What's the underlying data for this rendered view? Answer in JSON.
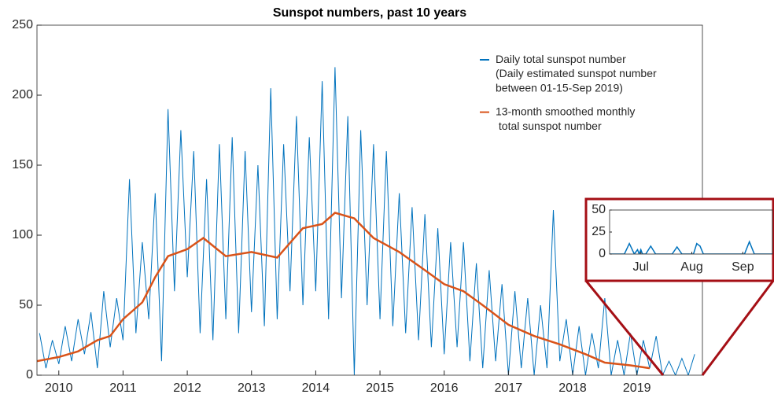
{
  "chart_data": [
    {
      "type": "line",
      "title": "Sunspot numbers, past 10 years",
      "x": [
        2009.7,
        2009.8,
        2009.9,
        2010.0,
        2010.1,
        2010.2,
        2010.3,
        2010.4,
        2010.5,
        2010.6,
        2010.7,
        2010.8,
        2010.9,
        2011.0,
        2011.1,
        2011.2,
        2011.3,
        2011.4,
        2011.5,
        2011.6,
        2011.7,
        2011.8,
        2011.9,
        2012.0,
        2012.1,
        2012.2,
        2012.3,
        2012.4,
        2012.5,
        2012.6,
        2012.7,
        2012.8,
        2012.9,
        2013.0,
        2013.1,
        2013.2,
        2013.3,
        2013.4,
        2013.5,
        2013.6,
        2013.7,
        2013.8,
        2013.9,
        2014.0,
        2014.1,
        2014.2,
        2014.3,
        2014.4,
        2014.5,
        2014.6,
        2014.7,
        2014.8,
        2014.9,
        2015.0,
        2015.1,
        2015.2,
        2015.3,
        2015.4,
        2015.5,
        2015.6,
        2015.7,
        2015.8,
        2015.9,
        2016.0,
        2016.1,
        2016.2,
        2016.3,
        2016.4,
        2016.5,
        2016.6,
        2016.7,
        2016.8,
        2016.9,
        2017.0,
        2017.1,
        2017.2,
        2017.3,
        2017.4,
        2017.5,
        2017.6,
        2017.7,
        2017.8,
        2017.9,
        2018.0,
        2018.1,
        2018.2,
        2018.3,
        2018.4,
        2018.5,
        2018.6,
        2018.7,
        2018.8,
        2018.9,
        2019.0,
        2019.1,
        2019.2,
        2019.3,
        2019.4,
        2019.5,
        2019.6,
        2019.7,
        2019.8,
        2019.9
      ],
      "series": [
        {
          "name": "Daily total sunspot number\n(Daily estimated sunspot number\nbetween 01-15-Sep 2019)",
          "color": "#0072bd",
          "values": [
            30,
            5,
            25,
            8,
            35,
            10,
            40,
            15,
            45,
            5,
            60,
            20,
            55,
            25,
            140,
            30,
            95,
            40,
            130,
            10,
            190,
            60,
            175,
            70,
            160,
            30,
            140,
            25,
            165,
            40,
            170,
            30,
            160,
            45,
            150,
            35,
            205,
            40,
            165,
            60,
            185,
            50,
            170,
            60,
            210,
            40,
            220,
            55,
            185,
            0,
            175,
            50,
            165,
            40,
            160,
            35,
            130,
            30,
            120,
            25,
            115,
            20,
            105,
            15,
            95,
            20,
            95,
            10,
            80,
            5,
            75,
            10,
            65,
            0,
            60,
            5,
            55,
            0,
            50,
            5,
            118,
            10,
            40,
            0,
            35,
            0,
            30,
            5,
            55,
            0,
            25,
            0,
            30,
            0,
            25,
            5,
            28,
            0,
            10,
            0,
            12,
            0,
            15
          ]
        },
        {
          "name": "13-month smoothed monthly\n total sunspot number",
          "color": "#d95319",
          "x": [
            2009.66,
            2010.0,
            2010.3,
            2010.6,
            2010.8,
            2011.0,
            2011.3,
            2011.5,
            2011.7,
            2012.0,
            2012.25,
            2012.6,
            2013.0,
            2013.4,
            2013.8,
            2014.1,
            2014.3,
            2014.6,
            2014.9,
            2015.3,
            2015.7,
            2016.0,
            2016.3,
            2016.6,
            2017.0,
            2017.4,
            2017.8,
            2018.2,
            2018.5,
            2018.9,
            2019.2
          ],
          "values": [
            10,
            13,
            17,
            25,
            28,
            40,
            52,
            70,
            85,
            90,
            98,
            85,
            88,
            84,
            105,
            108,
            116,
            112,
            98,
            88,
            75,
            65,
            60,
            50,
            36,
            28,
            22,
            15,
            9,
            7,
            5
          ]
        }
      ],
      "xlim": [
        2009.66,
        2020.02
      ],
      "xticks": [
        2010,
        2011,
        2012,
        2013,
        2014,
        2015,
        2016,
        2017,
        2018,
        2019
      ],
      "ylim": [
        0,
        250
      ],
      "yticks": [
        0,
        50,
        100,
        150,
        200,
        250
      ],
      "grid": false,
      "legend": "upper right"
    },
    {
      "type": "line",
      "x": [
        163,
        172,
        175,
        178,
        180,
        181,
        182,
        183,
        185,
        188,
        191,
        201,
        204,
        207,
        214,
        216,
        218,
        220,
        245,
        248,
        251,
        262
      ],
      "series": [
        {
          "color": "#0072bd",
          "values": [
            0,
            0,
            12,
            0,
            5,
            0,
            5,
            0,
            0,
            9,
            0,
            0,
            8,
            0,
            0,
            12,
            9,
            0,
            0,
            14,
            0,
            0
          ]
        }
      ],
      "xlim": [
        163,
        262
      ],
      "xticks": [
        {
          "value": 182,
          "label": "Jul"
        },
        {
          "value": 213,
          "label": "Aug"
        },
        {
          "value": 244,
          "label": "Sep"
        }
      ],
      "ylim": [
        0,
        50
      ],
      "yticks": [
        0,
        25,
        50
      ],
      "grid": false
    }
  ]
}
